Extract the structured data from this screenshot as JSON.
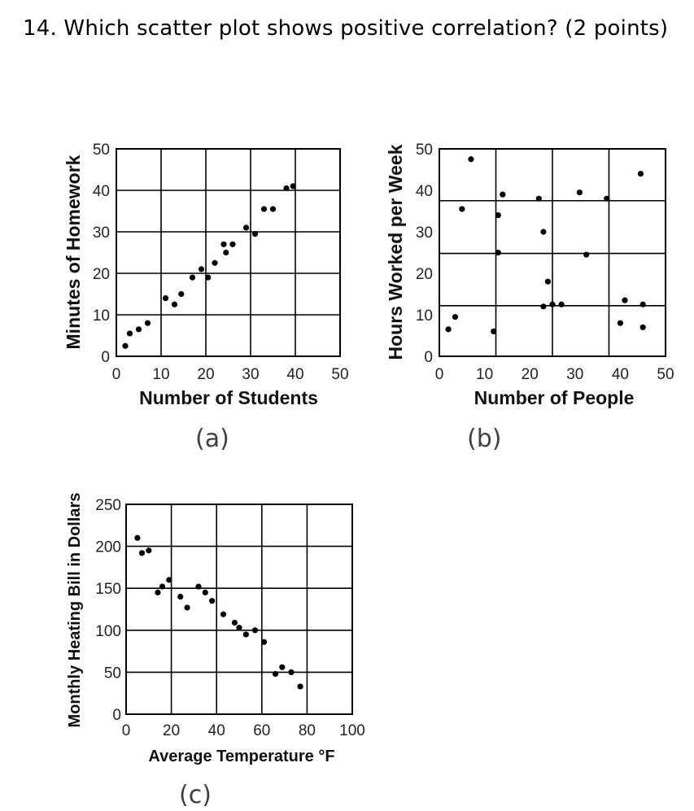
{
  "question": "14. Which scatter plot shows positive correlation? (2 points)",
  "captions": [
    "(a)",
    "(b)",
    "(c)"
  ],
  "chart_data": [
    {
      "type": "scatter",
      "xlabel": "Number of Students",
      "ylabel": "Minutes of Homework",
      "xlim": [
        0,
        50
      ],
      "ylim": [
        0,
        50
      ],
      "xticks": [
        0,
        10,
        20,
        30,
        40,
        50
      ],
      "yticks": [
        0,
        10,
        20,
        30,
        40,
        50
      ],
      "grid": true,
      "points": [
        [
          2,
          2.5
        ],
        [
          3,
          5.5
        ],
        [
          5,
          6.5
        ],
        [
          7,
          8
        ],
        [
          11,
          14
        ],
        [
          13,
          12.5
        ],
        [
          14.5,
          15
        ],
        [
          17,
          19
        ],
        [
          19,
          21
        ],
        [
          20.5,
          19
        ],
        [
          22,
          22.5
        ],
        [
          24,
          27
        ],
        [
          24.5,
          25
        ],
        [
          26,
          27
        ],
        [
          29,
          31
        ],
        [
          31,
          29.5
        ],
        [
          33,
          35.5
        ],
        [
          35,
          35.5
        ],
        [
          38,
          40.5
        ],
        [
          39.5,
          41
        ]
      ]
    },
    {
      "type": "scatter",
      "xlabel": "Number of People",
      "ylabel": "Hours Worked per Week",
      "xlim": [
        0,
        50
      ],
      "ylim": [
        0,
        50
      ],
      "xticks": [
        0,
        10,
        20,
        30,
        40,
        50
      ],
      "yticks": [
        0,
        10,
        20,
        30,
        40,
        50
      ],
      "grid": true,
      "points": [
        [
          2,
          6.5
        ],
        [
          3.5,
          9.5
        ],
        [
          5,
          35.5
        ],
        [
          7,
          47.5
        ],
        [
          12,
          6
        ],
        [
          13,
          34
        ],
        [
          13,
          25
        ],
        [
          14,
          39
        ],
        [
          22,
          38
        ],
        [
          23,
          30
        ],
        [
          23,
          12
        ],
        [
          24,
          18
        ],
        [
          25,
          12.5
        ],
        [
          27,
          12.5
        ],
        [
          31,
          39.5
        ],
        [
          32.5,
          24.5
        ],
        [
          37,
          38
        ],
        [
          40,
          8
        ],
        [
          41,
          13.5
        ],
        [
          44.5,
          44
        ],
        [
          45,
          7
        ],
        [
          45,
          12.5
        ]
      ]
    },
    {
      "type": "scatter",
      "xlabel": "Average Temperature °F",
      "ylabel": "Monthly Heating Bill in Dollars",
      "xlim": [
        0,
        100
      ],
      "ylim": [
        0,
        250
      ],
      "xticks": [
        0,
        20,
        40,
        60,
        80,
        100
      ],
      "yticks": [
        0,
        50,
        100,
        150,
        200,
        250
      ],
      "grid": true,
      "points": [
        [
          5,
          210
        ],
        [
          7,
          192
        ],
        [
          10,
          195
        ],
        [
          14,
          145
        ],
        [
          16,
          152
        ],
        [
          19,
          160
        ],
        [
          24,
          140
        ],
        [
          27,
          127
        ],
        [
          32,
          152
        ],
        [
          35,
          145
        ],
        [
          38,
          135
        ],
        [
          43,
          119
        ],
        [
          48,
          109
        ],
        [
          50,
          103
        ],
        [
          53,
          95
        ],
        [
          57,
          100
        ],
        [
          61,
          86
        ],
        [
          66,
          48
        ],
        [
          69,
          56
        ],
        [
          73,
          50
        ],
        [
          77,
          33
        ]
      ]
    }
  ]
}
